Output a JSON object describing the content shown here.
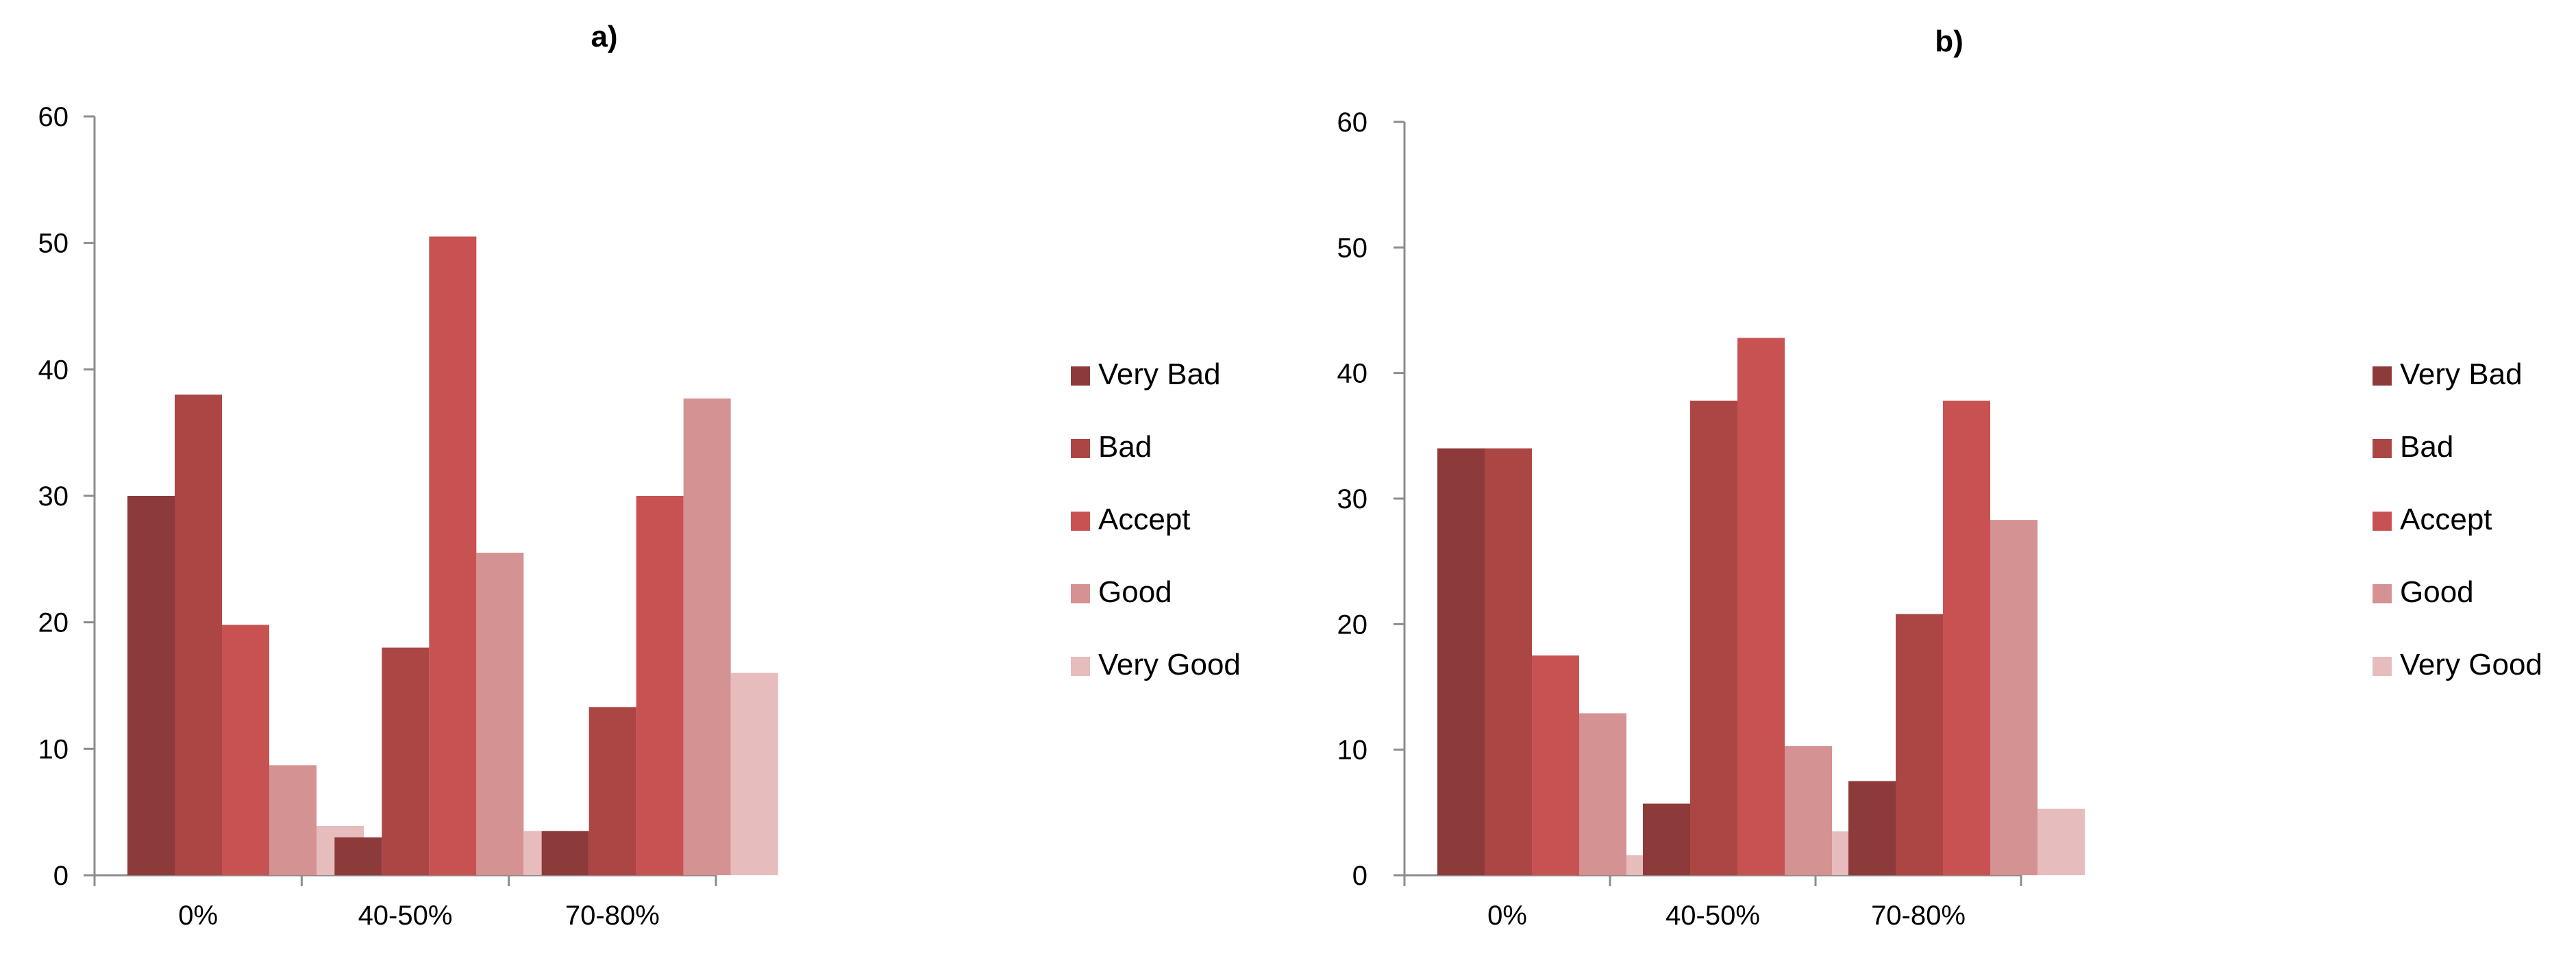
{
  "colors": {
    "Very Bad": "#8c3a3a",
    "Bad": "#ab4645",
    "Accept": "#c85252",
    "Good": "#d49292",
    "Very Good": "#e6bcbc"
  },
  "chart_data": [
    {
      "type": "bar",
      "title": "a)",
      "categories": [
        "0%",
        "40-50%",
        "70-80%"
      ],
      "ylim": [
        0,
        60
      ],
      "yticks": [
        "0",
        "10",
        "20",
        "30",
        "40",
        "50",
        "60"
      ],
      "grid": false,
      "legend": "right",
      "series": [
        {
          "name": "Very Bad",
          "values": [
            30,
            3,
            3.5
          ]
        },
        {
          "name": "Bad",
          "values": [
            38,
            18,
            13.3
          ]
        },
        {
          "name": "Accept",
          "values": [
            19.8,
            50.5,
            30
          ]
        },
        {
          "name": "Good",
          "values": [
            8.7,
            25.5,
            37.7
          ]
        },
        {
          "name": "Very Good",
          "values": [
            3.9,
            3.5,
            16
          ]
        }
      ]
    },
    {
      "type": "bar",
      "title": "b)",
      "categories": [
        "0%",
        "40-50%",
        "70-80%"
      ],
      "ylim": [
        0,
        60
      ],
      "yticks": [
        "0",
        "10",
        "20",
        "30",
        "40",
        "50",
        "60"
      ],
      "grid": false,
      "legend": "right",
      "series": [
        {
          "name": "Very Bad",
          "values": [
            34,
            5.7,
            7.5
          ]
        },
        {
          "name": "Bad",
          "values": [
            34,
            37.8,
            20.8
          ]
        },
        {
          "name": "Accept",
          "values": [
            17.5,
            42.8,
            37.8
          ]
        },
        {
          "name": "Good",
          "values": [
            12.9,
            10.3,
            28.3
          ]
        },
        {
          "name": "Very Good",
          "values": [
            1.6,
            3.5,
            5.3
          ]
        }
      ]
    }
  ]
}
